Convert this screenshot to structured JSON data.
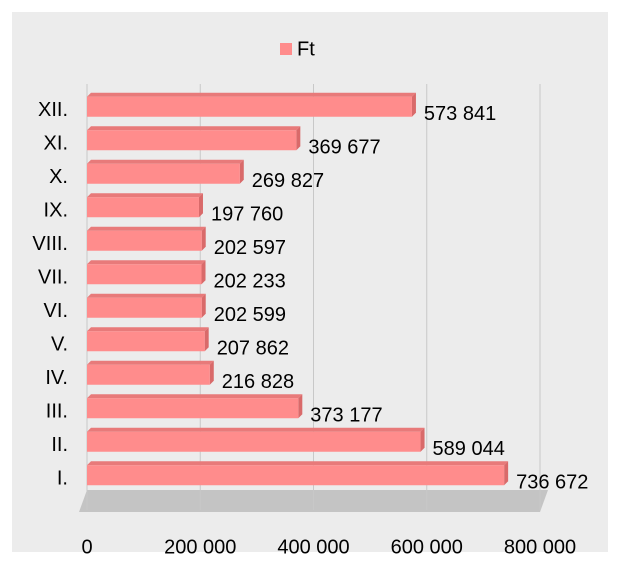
{
  "chart_data": {
    "type": "barh",
    "legend": "Ft",
    "color": "#ff8c8c",
    "categories": [
      "I.",
      "II.",
      "III.",
      "IV.",
      "V.",
      "VI.",
      "VII.",
      "VIII.",
      "IX.",
      "X.",
      "XI.",
      "XII."
    ],
    "values": [
      736672,
      589044,
      373177,
      216828,
      207862,
      202599,
      202233,
      202597,
      197760,
      269827,
      369677,
      573841
    ],
    "value_labels": [
      "736 672",
      "589 044",
      "373 177",
      "216 828",
      "207 862",
      "202 599",
      "202 233",
      "202 597",
      "197 760",
      "269 827",
      "369 677",
      "573 841"
    ],
    "xlim": [
      0,
      800000
    ],
    "xticks": [
      0,
      {
        "value": 200000,
        "label": "200 000"
      },
      {
        "value": 400000,
        "label": "400 000"
      },
      {
        "value": 600000,
        "label": "600 000"
      },
      {
        "value": 800000,
        "label": "800 000"
      }
    ],
    "grid": true
  }
}
